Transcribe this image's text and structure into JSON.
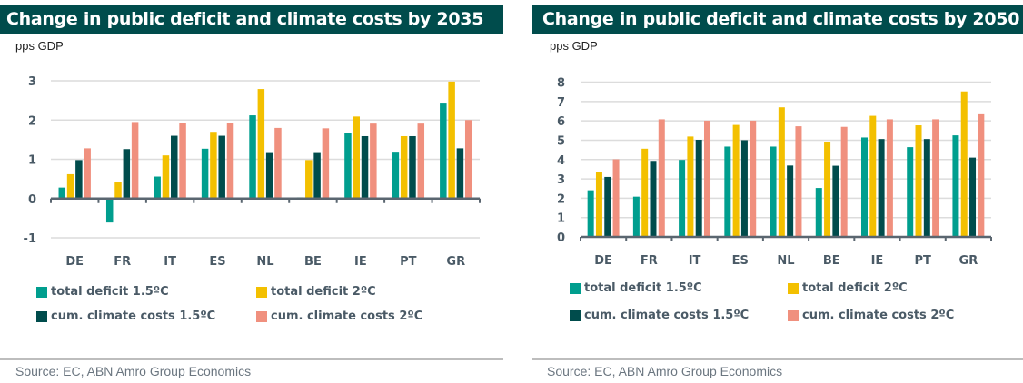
{
  "colors": {
    "title_bg": "#004c4c",
    "total_deficit_1_5": "#009e8e",
    "total_deficit_2": "#f3c000",
    "cum_climate_1_5": "#004c4c",
    "cum_climate_2": "#f0907e",
    "grid": "#dcdcdc",
    "axis": "#5a6670"
  },
  "legend": [
    {
      "label": "total deficit  1.5ºC",
      "color_key": "total_deficit_1_5"
    },
    {
      "label": "total deficit  2ºC",
      "color_key": "total_deficit_2"
    },
    {
      "label": "cum. climate costs  1.5ºC",
      "color_key": "cum_climate_1_5"
    },
    {
      "label": "cum. climate costs  2ºC",
      "color_key": "cum_climate_2"
    }
  ],
  "chart_data": [
    {
      "type": "bar",
      "title": "Change in public deficit and climate costs by 2035",
      "ylabel": "pps GDP",
      "xlabel": "",
      "ylim": [
        -1,
        3
      ],
      "yticks": [
        -1,
        0,
        1,
        2,
        3
      ],
      "grid": true,
      "legend_position": "bottom",
      "source": "Source: EC, ABN Amro Group Economics",
      "categories": [
        "DE",
        "FR",
        "IT",
        "ES",
        "NL",
        "BE",
        "IE",
        "PT",
        "GR"
      ],
      "series": [
        {
          "name": "total deficit  1.5ºC",
          "color_key": "total_deficit_1_5",
          "values": [
            0.28,
            -0.61,
            0.56,
            1.27,
            2.12,
            0.03,
            1.67,
            1.17,
            2.42
          ]
        },
        {
          "name": "total deficit  2ºC",
          "color_key": "total_deficit_2",
          "values": [
            0.62,
            0.41,
            1.1,
            1.7,
            2.79,
            0.98,
            2.09,
            1.59,
            2.98
          ]
        },
        {
          "name": "cum. climate costs  1.5ºC",
          "color_key": "cum_climate_1_5",
          "values": [
            0.98,
            1.26,
            1.6,
            1.6,
            1.16,
            1.16,
            1.59,
            1.59,
            1.28
          ]
        },
        {
          "name": "cum. climate costs  2ºC",
          "color_key": "cum_climate_2",
          "values": [
            1.28,
            1.95,
            1.92,
            1.92,
            1.8,
            1.79,
            1.91,
            1.91,
            2.0
          ]
        }
      ]
    },
    {
      "type": "bar",
      "title": "Change in public deficit and climate costs by 2050",
      "ylabel": "pps GDP",
      "xlabel": "",
      "ylim": [
        0,
        8
      ],
      "yticks": [
        0,
        1,
        2,
        3,
        4,
        5,
        6,
        7,
        8
      ],
      "grid": true,
      "legend_position": "bottom",
      "source": "Source: EC, ABN Amro Group Economics",
      "categories": [
        "DE",
        "FR",
        "IT",
        "ES",
        "NL",
        "BE",
        "IE",
        "PT",
        "GR"
      ],
      "series": [
        {
          "name": "total deficit  1.5ºC",
          "color_key": "total_deficit_1_5",
          "values": [
            2.41,
            2.08,
            3.98,
            4.67,
            4.67,
            2.53,
            5.14,
            4.64,
            5.25
          ]
        },
        {
          "name": "total deficit  2ºC",
          "color_key": "total_deficit_2",
          "values": [
            3.35,
            4.56,
            5.19,
            5.79,
            6.7,
            4.89,
            6.26,
            5.77,
            7.52
          ]
        },
        {
          "name": "cum. climate costs  1.5ºC",
          "color_key": "cum_climate_1_5",
          "values": [
            3.1,
            3.93,
            5.02,
            5.0,
            3.69,
            3.68,
            5.06,
            5.06,
            4.1
          ]
        },
        {
          "name": "cum. climate costs  2ºC",
          "color_key": "cum_climate_2",
          "values": [
            4.01,
            6.08,
            6.01,
            6.01,
            5.72,
            5.69,
            6.08,
            6.08,
            6.34
          ]
        }
      ]
    }
  ]
}
